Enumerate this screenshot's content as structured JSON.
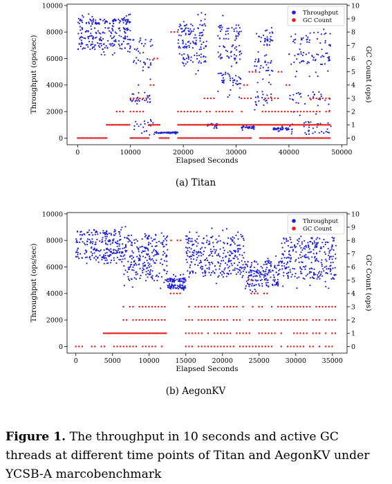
{
  "figure": {
    "caption_label": "Figure 1.",
    "caption_text": " The throughput in 10 seconds and active GC threads at different time points of Titan and AegonKV under YCSB-A marcobenchmark",
    "colors": {
      "throughput": "#1f1fd6",
      "gc": "#e0201c"
    }
  },
  "chart_data": [
    {
      "type": "scatter",
      "subcaption": "(a)  Titan",
      "xlabel": "Elapsed Seconds",
      "ylabel": "Throughput (ops/sec)",
      "y2label": "GC Count (ops)",
      "xlim": [
        -2000,
        51000
      ],
      "ylim": [
        -500,
        10100
      ],
      "y2lim": [
        -0.5,
        10.1
      ],
      "xticks": [
        0,
        10000,
        20000,
        30000,
        40000,
        50000
      ],
      "yticks": [
        0,
        2000,
        4000,
        6000,
        8000,
        10000
      ],
      "y2ticks": [
        0,
        1,
        2,
        3,
        4,
        5,
        6,
        7,
        8,
        9,
        10
      ],
      "legend": [
        "Throughput",
        "GC Count"
      ],
      "legend_position": "top-right",
      "series": [
        {
          "name": "Throughput",
          "axis": "left",
          "segments": [
            {
              "x": [
                0,
                10000
              ],
              "bands": [
                8800,
                8100,
                7500,
                6900
              ],
              "spread": 1300,
              "n": 260
            },
            {
              "x": [
                10000,
                14500
              ],
              "bands": [
                7000,
                5500,
                3000,
                800
              ],
              "spread": 2500,
              "n": 90
            },
            {
              "x": [
                14500,
                19000
              ],
              "bands": [
                400
              ],
              "spread": 200,
              "n": 70
            },
            {
              "x": [
                19000,
                24500
              ],
              "bands": [
                8200,
                7200,
                6000
              ],
              "spread": 2500,
              "n": 140
            },
            {
              "x": [
                24500,
                26500
              ],
              "bands": [
                1000
              ],
              "spread": 500,
              "n": 30
            },
            {
              "x": [
                26500,
                31000
              ],
              "bands": [
                8000,
                6500,
                4500
              ],
              "spread": 3000,
              "n": 120
            },
            {
              "x": [
                31000,
                33500
              ],
              "bands": [
                800
              ],
              "spread": 400,
              "n": 30
            },
            {
              "x": [
                33500,
                37000
              ],
              "bands": [
                7500,
                5500,
                3000
              ],
              "spread": 3000,
              "n": 90
            },
            {
              "x": [
                37000,
                40000
              ],
              "bands": [
                700
              ],
              "spread": 400,
              "n": 40
            },
            {
              "x": [
                40000,
                48000
              ],
              "bands": [
                7500,
                6000,
                3000,
                800
              ],
              "spread": 2800,
              "n": 160
            }
          ]
        },
        {
          "name": "GC Count",
          "axis": "right",
          "runs": [
            {
              "x": [
                0,
                5500
              ],
              "y": 0
            },
            {
              "x": [
                5500,
                10000
              ],
              "y": 1
            },
            {
              "x": [
                6800,
                9500
              ],
              "y": 2
            },
            {
              "x": [
                10000,
                13500
              ],
              "y": 3
            },
            {
              "x": [
                10000,
                13500
              ],
              "y": 2
            },
            {
              "x": [
                10000,
                13500
              ],
              "y": 0
            },
            {
              "x": [
                11500,
                12000
              ],
              "y": 4
            },
            {
              "x": [
                13500,
                15800
              ],
              "y": 1
            },
            {
              "x": [
                13800,
                14500
              ],
              "y": 4
            },
            {
              "x": [
                14500,
                15500
              ],
              "y": 6
            },
            {
              "x": [
                15500,
                17500
              ],
              "y": 0
            },
            {
              "x": [
                16500,
                19000
              ],
              "y": 8
            },
            {
              "x": [
                19000,
                34500
              ],
              "y": 1
            },
            {
              "x": [
                19000,
                33000
              ],
              "y": 0
            },
            {
              "x": [
                19000,
                32000
              ],
              "y": 2
            },
            {
              "x": [
                24000,
                26000
              ],
              "y": 3
            },
            {
              "x": [
                31000,
                33000
              ],
              "y": 3
            },
            {
              "x": [
                31500,
                32500
              ],
              "y": 4
            },
            {
              "x": [
                32500,
                34500
              ],
              "y": 5
            },
            {
              "x": [
                34500,
                48000
              ],
              "y": 0
            },
            {
              "x": [
                34500,
                48000
              ],
              "y": 1
            },
            {
              "x": [
                35000,
                48000
              ],
              "y": 2
            },
            {
              "x": [
                35500,
                38000
              ],
              "y": 3
            },
            {
              "x": [
                38000,
                39500
              ],
              "y": 5
            },
            {
              "x": [
                39500,
                40500
              ],
              "y": 4
            },
            {
              "x": [
                44000,
                48000
              ],
              "y": 3
            }
          ]
        }
      ]
    },
    {
      "type": "scatter",
      "subcaption": "(b)  AegonKV",
      "xlabel": "Elapsed Seconds",
      "ylabel": "Throughput (ops/sec)",
      "y2label": "GC Count (ops)",
      "xlim": [
        -1200,
        37000
      ],
      "ylim": [
        -500,
        10100
      ],
      "y2lim": [
        -0.5,
        10.1
      ],
      "xticks": [
        0,
        5000,
        10000,
        15000,
        20000,
        25000,
        30000,
        35000
      ],
      "yticks": [
        0,
        2000,
        4000,
        6000,
        8000,
        10000
      ],
      "y2ticks": [
        0,
        1,
        2,
        3,
        4,
        5,
        6,
        7,
        8,
        9,
        10
      ],
      "legend": [
        "Throughput",
        "GC Count"
      ],
      "legend_position": "top-right",
      "series": [
        {
          "name": "Throughput",
          "axis": "left",
          "segments": [
            {
              "x": [
                0,
                6500
              ],
              "bands": [
                8600,
                7900,
                7200,
                6700
              ],
              "spread": 1200,
              "n": 230
            },
            {
              "x": [
                6500,
                12500
              ],
              "bands": [
                8100,
                7400,
                6700,
                6000,
                5300
              ],
              "spread": 2000,
              "n": 240
            },
            {
              "x": [
                12500,
                15000
              ],
              "bands": [
                5000,
                4500
              ],
              "spread": 900,
              "n": 110
            },
            {
              "x": [
                15000,
                23000
              ],
              "bands": [
                8000,
                7200,
                6500,
                5700
              ],
              "spread": 2200,
              "n": 280
            },
            {
              "x": [
                23000,
                28000
              ],
              "bands": [
                6200,
                5500,
                4800
              ],
              "spread": 1700,
              "n": 170
            },
            {
              "x": [
                28000,
                35500
              ],
              "bands": [
                7800,
                7000,
                6200,
                5500
              ],
              "spread": 2400,
              "n": 270
            }
          ]
        },
        {
          "name": "GC Count",
          "axis": "right",
          "runs": [
            {
              "x": [
                0,
                12500
              ],
              "y": 0
            },
            {
              "x": [
                3800,
                12500
              ],
              "y": 1
            },
            {
              "x": [
                6500,
                12500
              ],
              "y": 2
            },
            {
              "x": [
                6500,
                12500
              ],
              "y": 3
            },
            {
              "x": [
                12500,
                14500
              ],
              "y": 4
            },
            {
              "x": [
                13000,
                15000
              ],
              "y": 8
            },
            {
              "x": [
                15000,
                35500
              ],
              "y": 0
            },
            {
              "x": [
                15000,
                35500
              ],
              "y": 1
            },
            {
              "x": [
                15000,
                35500
              ],
              "y": 2
            },
            {
              "x": [
                15000,
                35500
              ],
              "y": 3
            },
            {
              "x": [
                23500,
                26500
              ],
              "y": 4
            },
            {
              "x": [
                23500,
                24500
              ],
              "y": 5
            }
          ]
        }
      ]
    }
  ]
}
